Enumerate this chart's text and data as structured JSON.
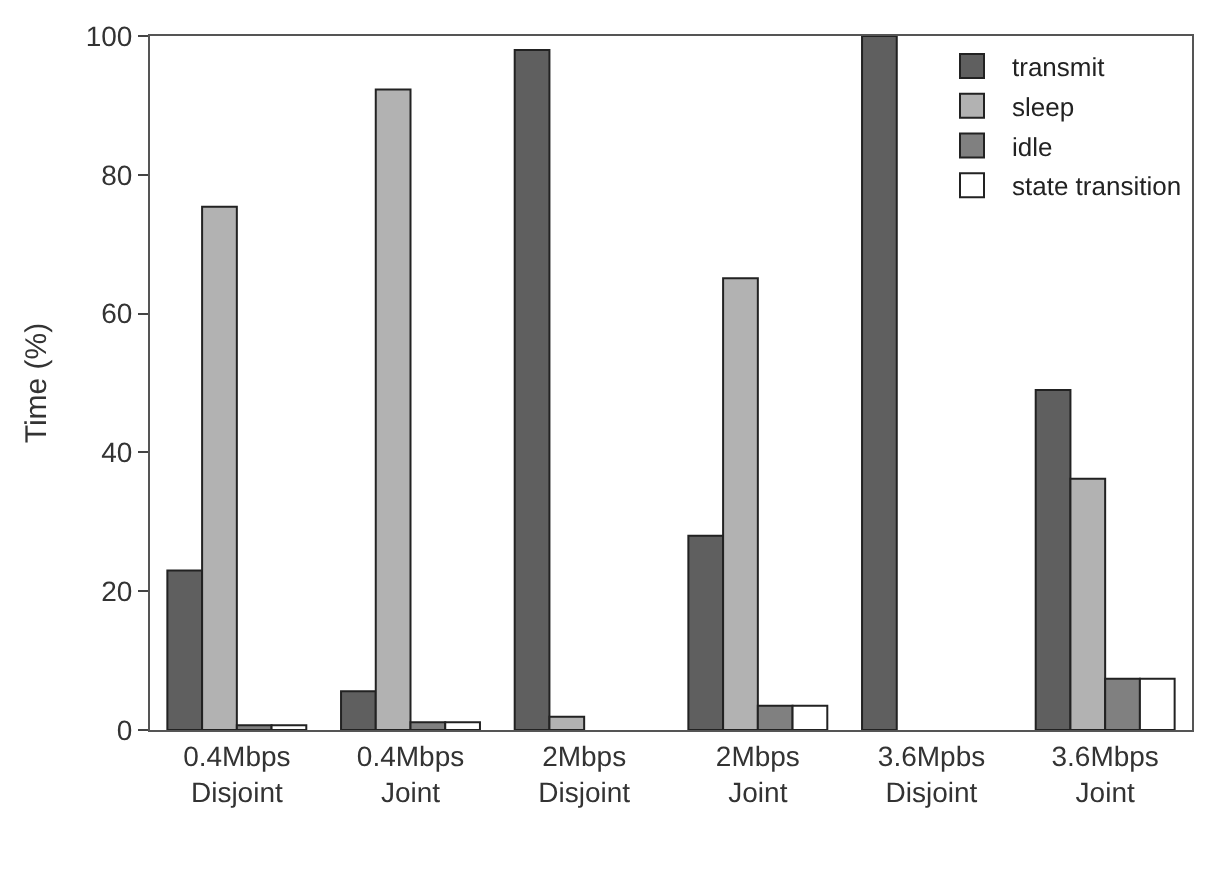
{
  "chart_data": {
    "type": "bar",
    "ylabel": "Time (%)",
    "categories": [
      "0.4Mbps\nDisjoint",
      "0.4Mbps\nJoint",
      "2Mbps\nDisjoint",
      "2Mbps\nJoint",
      "3.6Mpbs\nDisjoint",
      "3.6Mbps\nJoint"
    ],
    "series": [
      {
        "name": "transmit",
        "color": "#5f5f5f",
        "values": [
          23,
          5.6,
          98,
          28,
          100,
          49
        ]
      },
      {
        "name": "sleep",
        "color": "#b2b2b2",
        "values": [
          75.4,
          92.3,
          1.9,
          65.1,
          null,
          36.2
        ]
      },
      {
        "name": "idle",
        "color": "#808080",
        "values": [
          0.7,
          1.1,
          null,
          3.5,
          null,
          7.4
        ]
      },
      {
        "name": "state transition",
        "color": "#ffffff",
        "values": [
          0.7,
          1.1,
          null,
          3.5,
          null,
          7.4
        ]
      }
    ],
    "ylim": [
      0,
      100
    ],
    "yticks": [
      0,
      20,
      40,
      60,
      80,
      100
    ],
    "legend": "top right"
  }
}
